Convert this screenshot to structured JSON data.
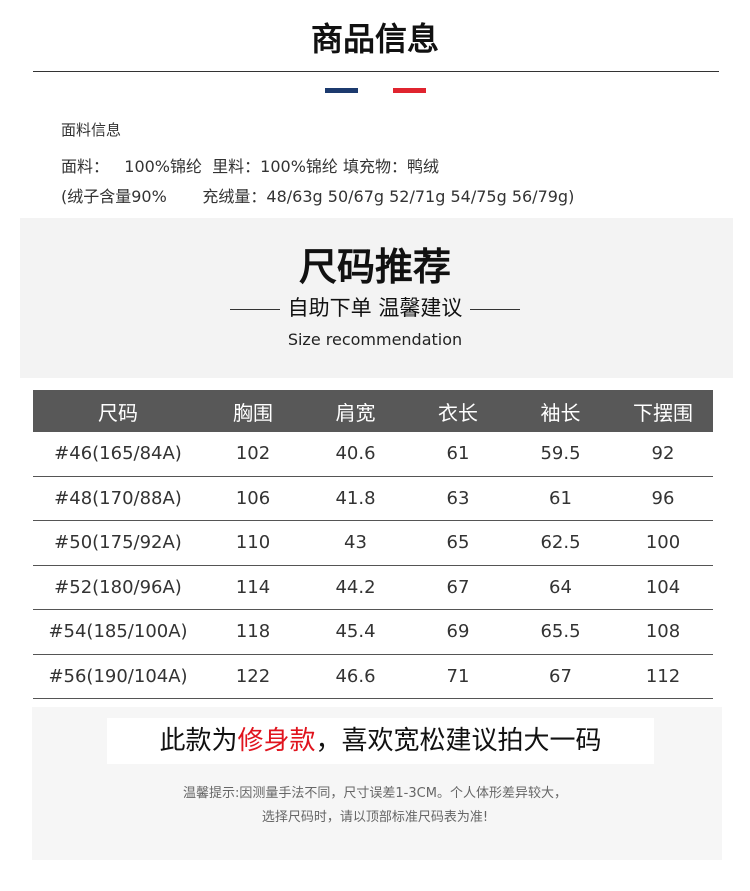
{
  "header": {
    "title": "商品信息",
    "colors": {
      "blue": "#1c3a6e",
      "red": "#e0242f"
    }
  },
  "fabric": {
    "heading": "面料信息",
    "line1": "面料：   100%锦纶  里料：100%锦纶 填充物：鸭绒",
    "line2": "(绒子含量90%       充绒量：48/63g 50/67g 52/71g 54/75g 56/79g)"
  },
  "size_section": {
    "title": "尺码推荐",
    "subtitle": "自助下单 温馨建议",
    "subtitle_en": "Size recommendation"
  },
  "table": {
    "headers": [
      "尺码",
      "胸围",
      "肩宽",
      "衣长",
      "袖长",
      "下摆围"
    ],
    "rows": [
      [
        "#46(165/84A)",
        "102",
        "40.6",
        "61",
        "59.5",
        "92"
      ],
      [
        "#48(170/88A)",
        "106",
        "41.8",
        "63",
        "61",
        "96"
      ],
      [
        "#50(175/92A)",
        "110",
        "43",
        "65",
        "62.5",
        "100"
      ],
      [
        "#52(180/96A)",
        "114",
        "44.2",
        "67",
        "64",
        "104"
      ],
      [
        "#54(185/100A)",
        "118",
        "45.4",
        "69",
        "65.5",
        "108"
      ],
      [
        "#56(190/104A)",
        "122",
        "46.6",
        "71",
        "67",
        "112"
      ]
    ]
  },
  "fit_note": {
    "prefix": "此款为",
    "highlight": "修身款",
    "suffix": "，喜欢宽松建议拍大一码",
    "highlight_color": "#e0141e"
  },
  "tips": [
    "温馨提示:因测量手法不同，尺寸误差1-3CM。个人体形差异较大，",
    "选择尺码时，请以顶部标准尺码表为准!"
  ]
}
